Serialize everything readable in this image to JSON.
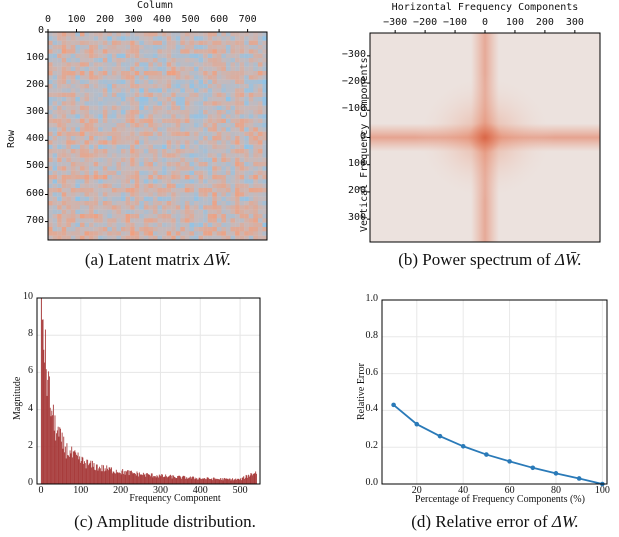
{
  "panel_a": {
    "caption_prefix": "(a) Latent matrix ",
    "caption_math": "ΔW̄.",
    "xlabel": "Column",
    "ylabel": "Row",
    "x_ticks": [
      "0",
      "100",
      "200",
      "300",
      "400",
      "500",
      "600",
      "700"
    ],
    "y_ticks": [
      "0",
      "100",
      "200",
      "300",
      "400",
      "500",
      "600",
      "700"
    ]
  },
  "panel_b": {
    "caption_prefix": "(b) Power spectrum of ",
    "caption_math": "ΔW̄.",
    "xlabel": "Horizontal Frequency Components",
    "ylabel": "Vertical Frequency Components",
    "x_ticks": [
      "−300",
      "−200",
      "−100",
      "0",
      "100",
      "200",
      "300"
    ],
    "y_ticks": [
      "−300",
      "−200",
      "−100",
      "0",
      "100",
      "200",
      "300"
    ]
  },
  "panel_c": {
    "caption": "(c) Amplitude distribution.",
    "xlabel": "Frequency Component",
    "ylabel": "Magnitude",
    "x_ticks": [
      "0",
      "100",
      "200",
      "300",
      "400",
      "500"
    ],
    "y_ticks": [
      "0",
      "2",
      "4",
      "6",
      "8",
      "10"
    ]
  },
  "panel_d": {
    "caption_prefix": "(d) Relative error of ",
    "caption_math": "ΔW.",
    "xlabel": "Percentage of Frequency Components (%)",
    "ylabel": "Relative Error",
    "x_ticks": [
      "20",
      "40",
      "60",
      "80",
      "100"
    ],
    "y_ticks": [
      "0.0",
      "0.2",
      "0.4",
      "0.6",
      "0.8",
      "1.0"
    ]
  },
  "colors": {
    "heat_warm": "#f0a080",
    "heat_cool": "#8fc4e8",
    "spectrum": "#e06848",
    "bars": "#a83c3c",
    "line": "#2a7ab8"
  },
  "chart_data": [
    {
      "type": "heatmap",
      "title": "",
      "xlabel": "Column",
      "ylabel": "Row",
      "xlim": [
        0,
        768
      ],
      "ylim": [
        0,
        768
      ],
      "colormap": "diverging blue-red (coolwarm)",
      "grid": false
    },
    {
      "type": "heatmap",
      "title": "",
      "xlabel": "Horizontal Frequency Components",
      "ylabel": "Vertical Frequency Components",
      "xlim": [
        -384,
        384
      ],
      "ylim": [
        -384,
        384
      ],
      "colormap": "reds",
      "description_values": {
        "peak_at": [
          0,
          0
        ],
        "cross_axes": true
      }
    },
    {
      "type": "bar",
      "title": "",
      "xlabel": "Frequency Component",
      "ylabel": "Magnitude",
      "xlim": [
        -10,
        550
      ],
      "ylim": [
        0,
        10
      ],
      "x": [
        0,
        5,
        10,
        20,
        30,
        40,
        50,
        60,
        80,
        100,
        120,
        150,
        200,
        250,
        300,
        350,
        400,
        450,
        500,
        540
      ],
      "values": [
        9.8,
        9.2,
        7.0,
        5.0,
        3.6,
        2.9,
        2.4,
        2.0,
        1.6,
        1.3,
        1.1,
        0.9,
        0.7,
        0.55,
        0.45,
        0.38,
        0.32,
        0.28,
        0.26,
        0.7
      ],
      "grid": true
    },
    {
      "type": "line",
      "title": "",
      "xlabel": "Percentage of Frequency Components (%)",
      "ylabel": "Relative Error",
      "xlim": [
        5,
        102
      ],
      "ylim": [
        0,
        1.0
      ],
      "x": [
        10,
        20,
        30,
        40,
        50,
        60,
        70,
        80,
        90,
        100
      ],
      "values": [
        0.43,
        0.325,
        0.26,
        0.205,
        0.16,
        0.123,
        0.088,
        0.058,
        0.03,
        0.0
      ],
      "markers": true,
      "grid": true
    }
  ]
}
